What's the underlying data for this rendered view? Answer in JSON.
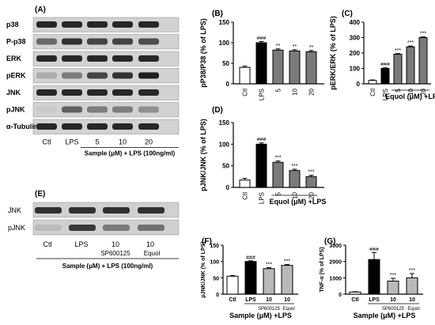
{
  "colors": {
    "black": "#000000",
    "gray": "#7a7a7a",
    "lightgray": "#b9b9b9",
    "white": "#ffffff"
  },
  "panelA": {
    "letter": "(A)",
    "rows": [
      "p38",
      "P-p38",
      "ERK",
      "pERK",
      "JNK",
      "pJNK",
      "α-Tubulin"
    ],
    "lanes": [
      "Ctl",
      "LPS",
      "5",
      "10",
      "20"
    ],
    "bracket_label": "Sample (μM) + LPS (100ng/ml)"
  },
  "panelE": {
    "letter": "(E)",
    "rows": [
      "JNK",
      "pJNK"
    ],
    "lanes": [
      "Ctl",
      "LPS",
      "10",
      "10"
    ],
    "sub_labels": [
      "SP600125",
      "Equol"
    ],
    "bracket_label": "Sample (μM) + LPS (100ng/ml)"
  },
  "chart_data": [
    {
      "id": "B",
      "type": "bar",
      "panel_label": "(B)",
      "categories": [
        "Ctl",
        "LPS",
        "5",
        "10",
        "20"
      ],
      "values": [
        40,
        100,
        82,
        80,
        78
      ],
      "errors": [
        3,
        3,
        3,
        3,
        3
      ],
      "fills": [
        "white",
        "black",
        "gray",
        "gray",
        "gray"
      ],
      "annotations": [
        "",
        "###",
        "**",
        "**",
        "**"
      ],
      "ylabel": "pP38/P38 (% of LPS)",
      "ylim": [
        0,
        150
      ],
      "yticks": [
        0,
        50,
        100,
        150
      ],
      "xlabel": ""
    },
    {
      "id": "C",
      "type": "bar",
      "panel_label": "(C)",
      "categories": [
        "Ctl",
        "LPS",
        "5",
        "10",
        "20"
      ],
      "values": [
        22,
        100,
        192,
        240,
        300
      ],
      "errors": [
        3,
        4,
        4,
        5,
        4
      ],
      "fills": [
        "white",
        "black",
        "gray",
        "gray",
        "gray"
      ],
      "annotations": [
        "",
        "###",
        "***",
        "***",
        "***"
      ],
      "ylabel": "pERK/ERK (% of LPS)",
      "ylim": [
        0,
        400
      ],
      "yticks": [
        0,
        100,
        200,
        300,
        400
      ],
      "xlabel": "Equol (μM) +LPS"
    },
    {
      "id": "D",
      "type": "bar",
      "panel_label": "(D)",
      "categories": [
        "Ctl",
        "LPS",
        "5",
        "10",
        "20"
      ],
      "values": [
        17,
        100,
        58,
        39,
        25
      ],
      "errors": [
        4,
        3,
        3,
        3,
        3
      ],
      "fills": [
        "white",
        "black",
        "gray",
        "gray",
        "gray"
      ],
      "annotations": [
        "",
        "###",
        "***",
        "***",
        "***"
      ],
      "ylabel": "pJNK/JNK (% of LPS)",
      "ylim": [
        0,
        150
      ],
      "yticks": [
        0,
        50,
        100,
        150
      ],
      "xlabel": "Equol (μM) +LPS"
    },
    {
      "id": "F",
      "type": "bar",
      "panel_label": "(F)",
      "categories": [
        "Ctl",
        "LPS",
        "10",
        "10"
      ],
      "group_labels": [
        "SP600125",
        "Equol"
      ],
      "values": [
        55,
        100,
        78,
        88
      ],
      "errors": [
        2,
        2,
        3,
        3
      ],
      "fills": [
        "white",
        "black",
        "lightgray",
        "lightgray"
      ],
      "annotations": [
        "",
        "###",
        "***",
        "***"
      ],
      "ylabel": "pJNK/JNK (% of LPS)",
      "ylim": [
        0,
        150
      ],
      "yticks": [
        0,
        50,
        100,
        150
      ],
      "xlabel": "Sample (μM) +LPS"
    },
    {
      "id": "G",
      "type": "bar",
      "panel_label": "(G)",
      "categories": [
        "Ctl",
        "LPS",
        "10",
        "10"
      ],
      "group_labels": [
        "SP600125",
        "Equol"
      ],
      "values": [
        130,
        2120,
        800,
        1000
      ],
      "errors": [
        20,
        430,
        170,
        260
      ],
      "fills": [
        "white",
        "black",
        "lightgray",
        "lightgray"
      ],
      "annotations": [
        "",
        "###",
        "***",
        "***"
      ],
      "ylabel": "TNF-α (% of LPS)",
      "ylim": [
        0,
        3000
      ],
      "yticks": [
        0,
        1000,
        2000,
        3000
      ],
      "xlabel": "Sample (μM) +LPS"
    }
  ]
}
